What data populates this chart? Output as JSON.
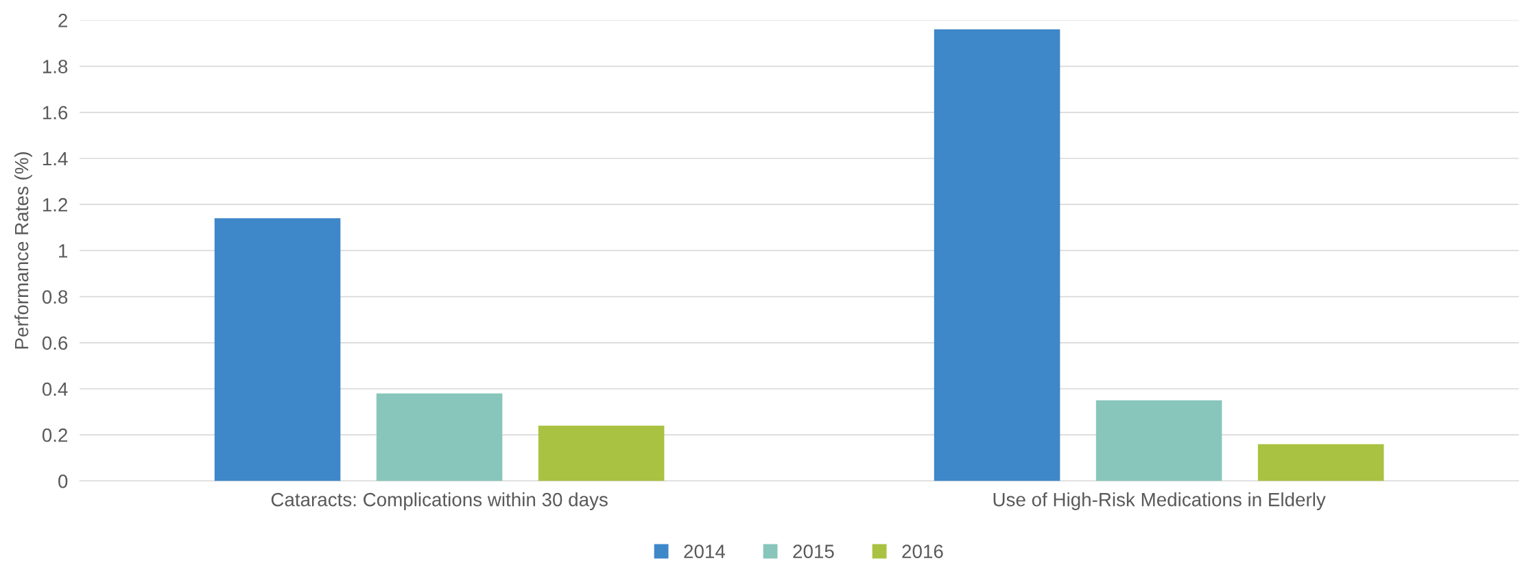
{
  "chart_data": {
    "type": "bar",
    "ylabel": "Performance Rates (%)",
    "categories": [
      "Cataracts: Complications within 30 days",
      "Use of High-Risk Medications in Elderly"
    ],
    "series": [
      {
        "name": "2014",
        "color": "#3e87c9",
        "values": [
          1.14,
          1.96
        ]
      },
      {
        "name": "2015",
        "color": "#88c6bb",
        "values": [
          0.38,
          0.35
        ]
      },
      {
        "name": "2016",
        "color": "#a9c241",
        "values": [
          0.24,
          0.16
        ]
      }
    ],
    "ylim": [
      0,
      2
    ],
    "yticks": [
      0,
      {
        "value": 0.2,
        "label": "0.2"
      },
      {
        "value": 0.4,
        "label": "0.4"
      },
      {
        "value": 0.6,
        "label": "0.6"
      },
      {
        "value": 0.8,
        "label": "0.8"
      },
      1,
      {
        "value": 1.2,
        "label": "1.2"
      },
      {
        "value": 1.4,
        "label": "1.4"
      },
      {
        "value": 1.6,
        "label": "1.6"
      },
      {
        "value": 1.8,
        "label": "1.8"
      },
      2
    ],
    "grid": "y",
    "legend": "bottom"
  }
}
